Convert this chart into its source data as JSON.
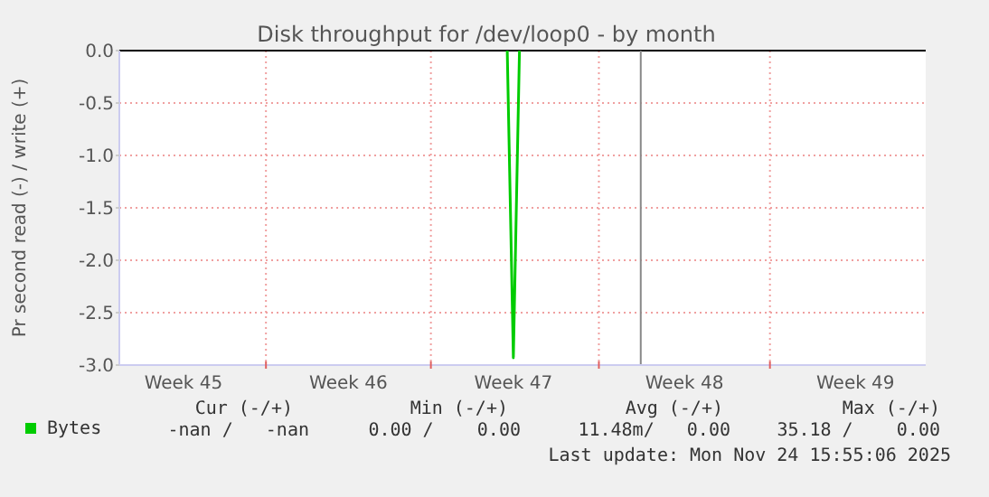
{
  "chart_data": {
    "type": "line",
    "title": "Disk throughput for /dev/loop0 - by month",
    "ylabel": "Pr second read (-) / write (+)",
    "categories": [
      null,
      null,
      null,
      null,
      null,
      null,
      null,
      null,
      null,
      null,
      "Week 45",
      null,
      null,
      null,
      null,
      null,
      null,
      null,
      null,
      null,
      null,
      null,
      null,
      null,
      null,
      null,
      null,
      null,
      null,
      null,
      null,
      null,
      null,
      null,
      null,
      null,
      null,
      "Week 46",
      null,
      null,
      null,
      null,
      null,
      null,
      null,
      null,
      null,
      null,
      null,
      null,
      null,
      null,
      null,
      null,
      null,
      null,
      null,
      null,
      null,
      null,
      null,
      null,
      null,
      null,
      "Week 47",
      null,
      null,
      null,
      null,
      null,
      null,
      null,
      null,
      null,
      null,
      null,
      null,
      null,
      null,
      null,
      null,
      null,
      null,
      null,
      null,
      null,
      null,
      null,
      null,
      null,
      null,
      null,
      "Week 48",
      null,
      null,
      null,
      null,
      null,
      null,
      null,
      null,
      null,
      null,
      null,
      null,
      null,
      null,
      null,
      null,
      null,
      null,
      null,
      null,
      null,
      null,
      null,
      null,
      null,
      null,
      null,
      "Week 49",
      null,
      null,
      null,
      null,
      null,
      null,
      null,
      null,
      null,
      null,
      null
    ],
    "ylim": [
      -3,
      0
    ],
    "yticks": [
      {
        "value": -3,
        "label": "-3.0"
      },
      {
        "value": -2.5,
        "label": "-2.5"
      },
      {
        "value": -2,
        "label": "-2.0"
      },
      {
        "value": -1.5,
        "label": "-1.5"
      },
      {
        "value": -1,
        "label": "-1.0"
      },
      {
        "value": -0.5,
        "label": "-0.5"
      },
      {
        "value": 0,
        "label": "0.0"
      }
    ],
    "grid": true,
    "legend": "bottom left",
    "series": [
      {
        "name": "Bytes",
        "color": "#00cc00",
        "values": [
          null,
          null,
          null,
          null,
          null,
          null,
          null,
          null,
          null,
          null,
          null,
          null,
          null,
          null,
          null,
          null,
          null,
          null,
          null,
          null,
          null,
          null,
          null,
          null,
          null,
          null,
          null,
          null,
          null,
          null,
          null,
          null,
          null,
          null,
          null,
          null,
          null,
          null,
          null,
          null,
          null,
          null,
          null,
          null,
          null,
          null,
          null,
          null,
          null,
          null,
          null,
          null,
          null,
          null,
          null,
          null,
          null,
          null,
          null,
          null,
          null,
          null,
          null,
          0,
          -2.93,
          0,
          null,
          null,
          null,
          null,
          null,
          null,
          null,
          null,
          null,
          null,
          null,
          null,
          null,
          null,
          null,
          null,
          null,
          null,
          null,
          null,
          null,
          null,
          null,
          null,
          null,
          null,
          null,
          null,
          null,
          null,
          null,
          null,
          null,
          null,
          null,
          null,
          null,
          null,
          null,
          null,
          null,
          null,
          null,
          null,
          null,
          null,
          null,
          null,
          null,
          null,
          null,
          null,
          null,
          null,
          null,
          null,
          null,
          null,
          null,
          null,
          null,
          null,
          null,
          null,
          null,
          null
        ]
      }
    ],
    "ref_lines": [
      {
        "axis": "y",
        "value": 0,
        "color": "#000000"
      }
    ],
    "annotations": [
      "Cur (-/+)",
      "Min (-/+)",
      "Avg (-/+)",
      "Max (-/+)",
      "-nan /   -nan",
      "0.00 /    0.00",
      "11.48m/   0.00",
      "35.18 /    0.00",
      "Last update: Mon Nov 24 15:55:06 2025"
    ]
  }
}
